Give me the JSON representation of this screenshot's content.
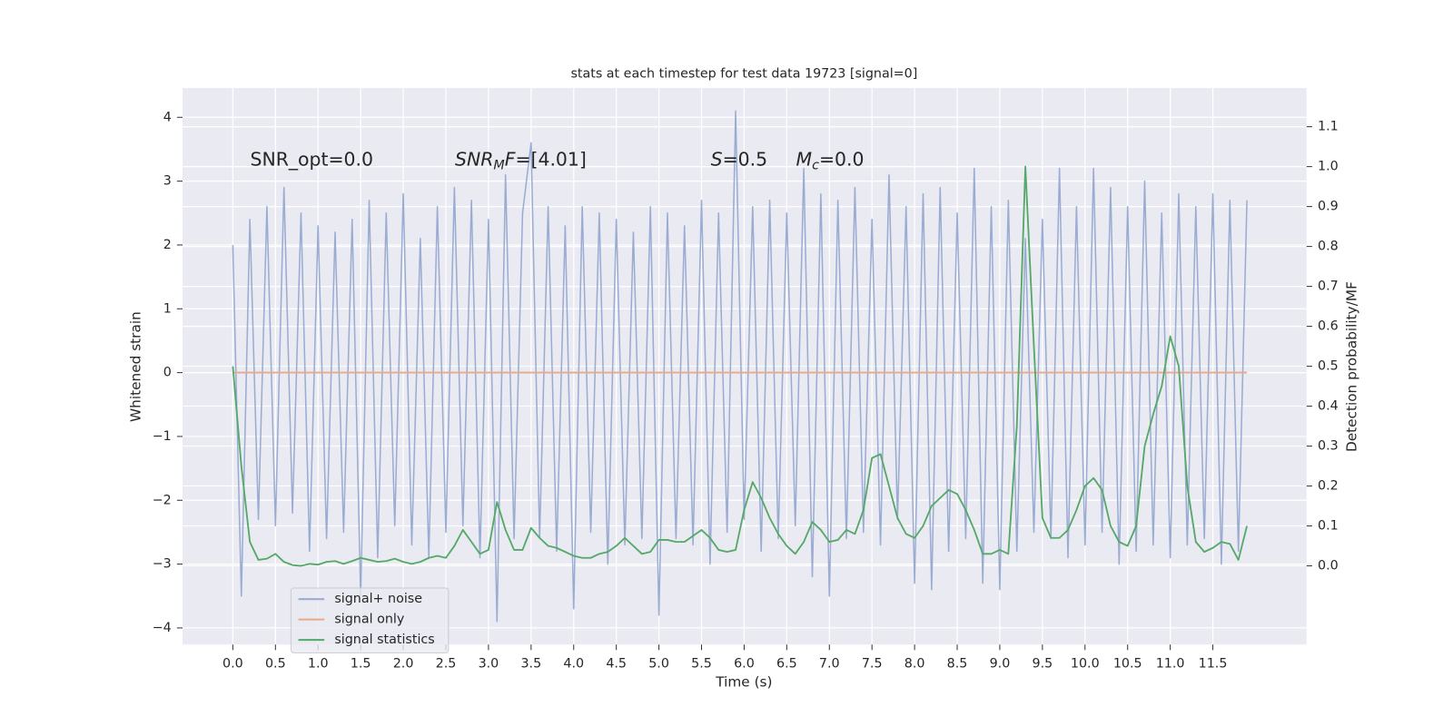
{
  "chart_data": {
    "type": "line",
    "title": "stats at each timestep for test data 19723 [signal=0]",
    "xlabel": "Time (s)",
    "ylabel": "Whitened strain",
    "y2label": "Detection probability/MF",
    "x": [
      0,
      0.1,
      0.2,
      0.3,
      0.4,
      0.5,
      0.6,
      0.7,
      0.8,
      0.9,
      1,
      1.1,
      1.2,
      1.3,
      1.4,
      1.5,
      1.6,
      1.7,
      1.8,
      1.9,
      2,
      2.1,
      2.2,
      2.3,
      2.4,
      2.5,
      2.6,
      2.7,
      2.8,
      2.9,
      3,
      3.1,
      3.2,
      3.3,
      3.4,
      3.5,
      3.6,
      3.7,
      3.8,
      3.9,
      4,
      4.1,
      4.2,
      4.3,
      4.4,
      4.5,
      4.6,
      4.7,
      4.8,
      4.9,
      5,
      5.1,
      5.2,
      5.3,
      5.4,
      5.5,
      5.6,
      5.7,
      5.8,
      5.9,
      6,
      6.1,
      6.2,
      6.3,
      6.4,
      6.5,
      6.6,
      6.7,
      6.8,
      6.9,
      7,
      7.1,
      7.2,
      7.3,
      7.4,
      7.5,
      7.6,
      7.7,
      7.8,
      7.9,
      8,
      8.1,
      8.2,
      8.3,
      8.4,
      8.5,
      8.6,
      8.7,
      8.8,
      8.9,
      9,
      9.1,
      9.2,
      9.3,
      9.4,
      9.5,
      9.6,
      9.7,
      9.8,
      9.9,
      10,
      10.1,
      10.2,
      10.3,
      10.4,
      10.5,
      10.6,
      10.7,
      10.8,
      10.9,
      11,
      11.1,
      11.2,
      11.3,
      11.4,
      11.5,
      11.6,
      11.7,
      11.8,
      11.9
    ],
    "series": [
      {
        "name": "signal+ noise",
        "color": "#9aacd2",
        "values": [
          2.0,
          -3.5,
          2.4,
          -2.3,
          2.6,
          -2.4,
          2.9,
          -2.2,
          2.5,
          -2.8,
          2.3,
          -2.6,
          2.2,
          -2.5,
          2.4,
          -3.5,
          2.7,
          -2.9,
          2.5,
          -2.4,
          2.8,
          -2.7,
          2.1,
          -2.9,
          2.6,
          -2.5,
          2.9,
          -2.4,
          2.7,
          -2.9,
          2.4,
          -3.9,
          3.1,
          -2.6,
          2.5,
          3.6,
          -2.6,
          2.6,
          -2.8,
          2.3,
          -3.7,
          2.6,
          -2.5,
          2.5,
          -3.0,
          2.4,
          -2.7,
          2.2,
          -2.6,
          2.6,
          -3.8,
          2.5,
          -2.6,
          2.3,
          -2.7,
          2.7,
          -3.0,
          2.5,
          -2.5,
          4.1,
          -2.3,
          2.6,
          -2.8,
          2.7,
          -2.6,
          2.5,
          -2.4,
          3.2,
          -3.2,
          2.8,
          -3.5,
          2.7,
          -2.6,
          2.9,
          -2.5,
          2.4,
          -2.7,
          3.1,
          -2.3,
          2.6,
          -3.3,
          2.8,
          -3.4,
          2.9,
          -2.8,
          2.5,
          -2.6,
          3.2,
          -3.3,
          2.6,
          -3.4,
          2.7,
          -2.8,
          2.1,
          -2.5,
          2.4,
          -2.6,
          3.2,
          -2.9,
          2.6,
          -2.7,
          3.2,
          -2.5,
          2.9,
          -3.0,
          2.6,
          -2.8,
          3.0,
          -2.7,
          2.5,
          -2.9,
          2.8,
          -2.7,
          2.6,
          -2.6,
          2.8,
          -3.0,
          2.7,
          -2.8,
          2.7
        ]
      },
      {
        "name": "signal only",
        "color": "#e7a98c",
        "values": [
          0,
          0,
          0,
          0,
          0,
          0,
          0,
          0,
          0,
          0,
          0,
          0,
          0,
          0,
          0,
          0,
          0,
          0,
          0,
          0,
          0,
          0,
          0,
          0,
          0,
          0,
          0,
          0,
          0,
          0,
          0,
          0,
          0,
          0,
          0,
          0,
          0,
          0,
          0,
          0,
          0,
          0,
          0,
          0,
          0,
          0,
          0,
          0,
          0,
          0,
          0,
          0,
          0,
          0,
          0,
          0,
          0,
          0,
          0,
          0,
          0,
          0,
          0,
          0,
          0,
          0,
          0,
          0,
          0,
          0,
          0,
          0,
          0,
          0,
          0,
          0,
          0,
          0,
          0,
          0,
          0,
          0,
          0,
          0,
          0,
          0,
          0,
          0,
          0,
          0,
          0,
          0,
          0,
          0,
          0,
          0,
          0,
          0,
          0,
          0,
          0,
          0,
          0,
          0,
          0,
          0,
          0,
          0,
          0,
          0,
          0,
          0,
          0,
          0,
          0,
          0,
          0,
          0,
          0,
          0
        ]
      },
      {
        "name": "signal statistics",
        "color": "#55a868",
        "axis": "y2",
        "values": [
          0.5,
          0.25,
          0.06,
          0.015,
          0.018,
          0.03,
          0.01,
          0.002,
          0.0,
          0.005,
          0.003,
          0.01,
          0.012,
          0.005,
          0.012,
          0.02,
          0.015,
          0.01,
          0.012,
          0.018,
          0.01,
          0.005,
          0.01,
          0.02,
          0.025,
          0.02,
          0.05,
          0.09,
          0.06,
          0.03,
          0.04,
          0.16,
          0.09,
          0.04,
          0.04,
          0.095,
          0.07,
          0.05,
          0.045,
          0.035,
          0.025,
          0.02,
          0.02,
          0.03,
          0.035,
          0.05,
          0.07,
          0.05,
          0.03,
          0.035,
          0.065,
          0.065,
          0.06,
          0.06,
          0.075,
          0.09,
          0.07,
          0.04,
          0.035,
          0.04,
          0.14,
          0.21,
          0.17,
          0.12,
          0.08,
          0.05,
          0.03,
          0.06,
          0.11,
          0.09,
          0.06,
          0.065,
          0.09,
          0.08,
          0.14,
          0.27,
          0.28,
          0.2,
          0.12,
          0.08,
          0.07,
          0.1,
          0.15,
          0.17,
          0.19,
          0.18,
          0.14,
          0.09,
          0.03,
          0.03,
          0.04,
          0.03,
          0.35,
          1.0,
          0.55,
          0.12,
          0.07,
          0.07,
          0.09,
          0.14,
          0.2,
          0.22,
          0.19,
          0.1,
          0.06,
          0.05,
          0.1,
          0.3,
          0.38,
          0.45,
          0.575,
          0.5,
          0.2,
          0.06,
          0.035,
          0.045,
          0.06,
          0.055,
          0.015,
          0.1
        ]
      }
    ],
    "xlim": [
      -0.59,
      12.6
    ],
    "ylim": [
      -4.26,
      4.46
    ],
    "y2lim": [
      -0.197,
      1.197
    ],
    "xticks": [
      {
        "value": 0,
        "label": "0.0"
      },
      {
        "value": 0.5,
        "label": "0.5"
      },
      {
        "value": 1,
        "label": "1.0"
      },
      {
        "value": 1.5,
        "label": "1.5"
      },
      {
        "value": 2,
        "label": "2.0"
      },
      {
        "value": 2.5,
        "label": "2.5"
      },
      {
        "value": 3,
        "label": "3.0"
      },
      {
        "value": 3.5,
        "label": "3.5"
      },
      {
        "value": 4,
        "label": "4.0"
      },
      {
        "value": 4.5,
        "label": "4.5"
      },
      {
        "value": 5,
        "label": "5.0"
      },
      {
        "value": 5.5,
        "label": "5.5"
      },
      {
        "value": 6,
        "label": "6.0"
      },
      {
        "value": 6.5,
        "label": "6.5"
      },
      {
        "value": 7,
        "label": "7.0"
      },
      {
        "value": 7.5,
        "label": "7.5"
      },
      {
        "value": 8,
        "label": "8.0"
      },
      {
        "value": 8.5,
        "label": "8.5"
      },
      {
        "value": 9,
        "label": "9.0"
      },
      {
        "value": 9.5,
        "label": "9.5"
      },
      {
        "value": 10,
        "label": "10.0"
      },
      {
        "value": 10.5,
        "label": "10.5"
      },
      {
        "value": 11,
        "label": "11.0"
      },
      {
        "value": 11.5,
        "label": "11.5"
      }
    ],
    "yticks": [
      {
        "value": -4,
        "label": "−4"
      },
      {
        "value": -3,
        "label": "−3"
      },
      {
        "value": -2,
        "label": "−2"
      },
      {
        "value": -1,
        "label": "−1"
      },
      0,
      1,
      2,
      3,
      4
    ],
    "y2ticks": [
      {
        "value": 0,
        "label": "0.0"
      },
      {
        "value": 0.1,
        "label": "0.1"
      },
      {
        "value": 0.2,
        "label": "0.2"
      },
      {
        "value": 0.3,
        "label": "0.3"
      },
      {
        "value": 0.4,
        "label": "0.4"
      },
      {
        "value": 0.5,
        "label": "0.5"
      },
      {
        "value": 0.6,
        "label": "0.6"
      },
      {
        "value": 0.7,
        "label": "0.7"
      },
      {
        "value": 0.8,
        "label": "0.8"
      },
      {
        "value": 0.9,
        "label": "0.9"
      },
      {
        "value": 1,
        "label": "1.0"
      },
      {
        "value": 1.1,
        "label": "1.1"
      }
    ],
    "grid": true,
    "legend": "lower left",
    "annotations": [
      [
        {
          "text": "SNR_opt=0.0"
        }
      ],
      [
        {
          "text": "SNR",
          "italic": true
        },
        {
          "text": "M",
          "italic": true,
          "sub": true
        },
        {
          "text": "F",
          "italic": true
        },
        {
          "text": "=[4.01]"
        }
      ],
      [
        {
          "text": "S",
          "italic": true
        },
        {
          "text": "=0.5"
        }
      ],
      [
        {
          "text": "M",
          "italic": true
        },
        {
          "text": "c",
          "italic": true,
          "sub": true
        },
        {
          "text": "=0.0"
        }
      ]
    ]
  }
}
